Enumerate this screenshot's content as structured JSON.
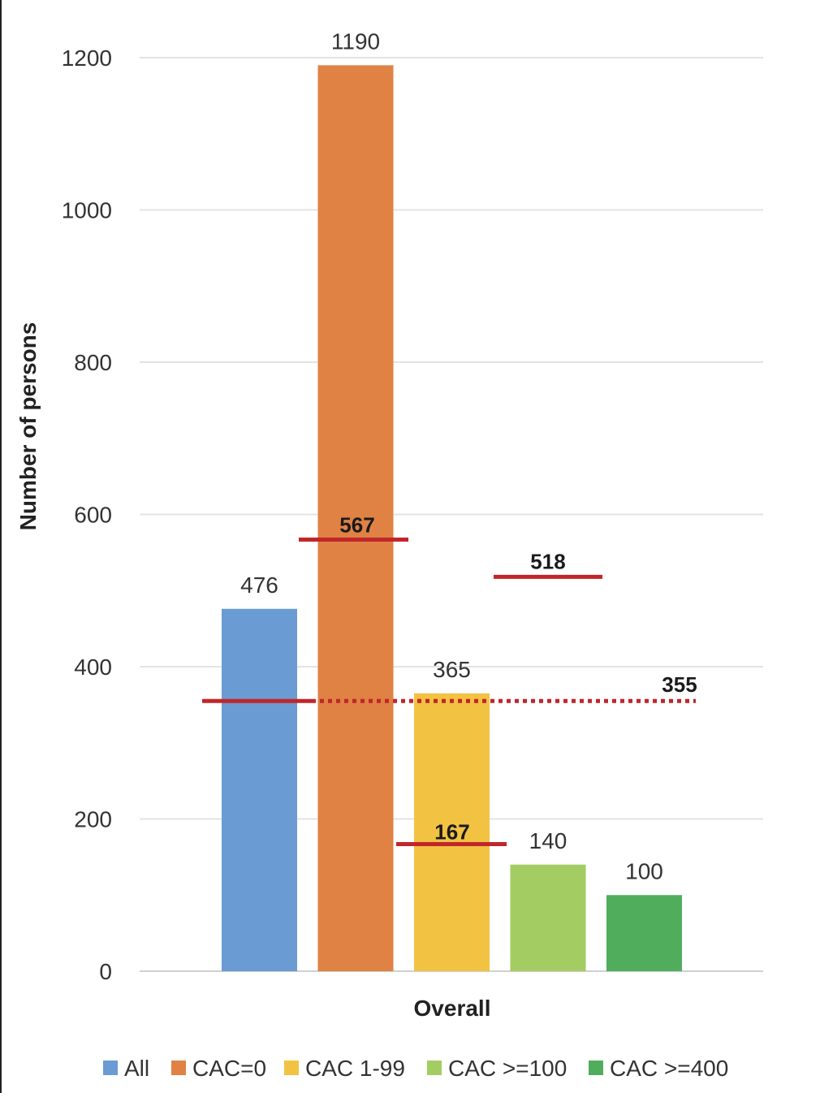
{
  "chart_data": {
    "type": "bar",
    "title": "",
    "xlabel": "",
    "ylabel": "Number of persons",
    "categories": [
      "Overall"
    ],
    "category_label": "Overall",
    "series": [
      {
        "name": "All",
        "values": [
          476
        ],
        "color": "#6a9bd3"
      },
      {
        "name": "CAC=0",
        "values": [
          1190
        ],
        "color": "#df8244"
      },
      {
        "name": "CAC 1-99",
        "values": [
          365
        ],
        "color": "#f2c243"
      },
      {
        "name": "CAC >=100",
        "values": [
          140
        ],
        "color": "#a3cd62"
      },
      {
        "name": "CAC >=400",
        "values": [
          100
        ],
        "color": "#50ad5c"
      }
    ],
    "ylim": [
      0,
      1200
    ],
    "yticks": [
      0,
      200,
      400,
      600,
      800,
      1000,
      1200
    ],
    "grid": true,
    "legend_position": "bottom",
    "reference_lines": [
      {
        "value": 355,
        "label": "355",
        "color": "#c0262a",
        "style": "solid-then-dotted"
      },
      {
        "value": 567,
        "label": "567",
        "color": "#c0262a",
        "style": "solid"
      },
      {
        "value": 167,
        "label": "167",
        "color": "#c0262a",
        "style": "solid"
      },
      {
        "value": 518,
        "label": "518",
        "color": "#c0262a",
        "style": "solid"
      }
    ]
  }
}
